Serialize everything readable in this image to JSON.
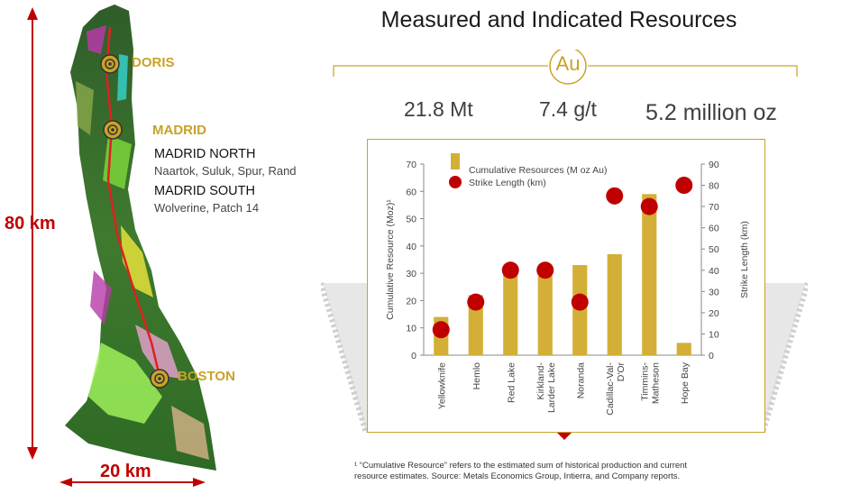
{
  "header": {
    "title": "Measured and Indicated Resources",
    "badge": "Au"
  },
  "stats": {
    "tonnage": "21.8 Mt",
    "grade": "7.4 g/t",
    "ounces": "5.2 million oz"
  },
  "map": {
    "labels": {
      "doris": "DORIS",
      "madrid": "MADRID",
      "boston": "BOSTON"
    },
    "madrid_north": {
      "title": "MADRID NORTH",
      "deposits": "Naartok, Suluk, Spur, Rand"
    },
    "madrid_south": {
      "title": "MADRID SOUTH",
      "deposits": "Wolverine, Patch 14"
    },
    "scale_vertical": "80 km",
    "scale_horizontal": "20 km"
  },
  "chart_data": {
    "type": "bar",
    "categories": [
      "Yellowknife",
      "Hemlo",
      "Red Lake",
      "Kirkland-Larder Lake",
      "Noranda",
      "Cadillac-Val-D'Or",
      "Timmins-Matheson",
      "Hope Bay"
    ],
    "category_lines": [
      [
        "Yellowknife"
      ],
      [
        "Hemlo"
      ],
      [
        "Red Lake"
      ],
      [
        "Kirkland-",
        "Larder Lake"
      ],
      [
        "Noranda"
      ],
      [
        "Cadillac-Val-",
        "D'Or"
      ],
      [
        "Timmins-",
        "Matheson"
      ],
      [
        "Hope Bay"
      ]
    ],
    "series": [
      {
        "name": "Cumulative Resources (M oz Au)",
        "type": "bar",
        "axis": "left",
        "color": "#d4af37",
        "values": [
          14,
          22,
          30,
          29,
          33,
          37,
          59,
          4.5
        ]
      },
      {
        "name": "Strike Length (km)",
        "type": "scatter",
        "axis": "right",
        "color": "#c00000",
        "values": [
          12,
          25,
          40,
          40,
          25,
          75,
          70,
          80
        ]
      }
    ],
    "ylabel": "Cumulative Resource  (Moz)¹",
    "ylabel_right": "Strike Length (km)",
    "ylim": [
      0,
      70
    ],
    "ylim_right": [
      0,
      90
    ],
    "yticks": [
      0,
      10,
      20,
      30,
      40,
      50,
      60,
      70
    ],
    "yticks_right": [
      0,
      10,
      20,
      30,
      40,
      50,
      60,
      70,
      80,
      90
    ],
    "legend_position": "top-left",
    "grid": false
  },
  "footnote": {
    "line1": "¹ “Cumulative Resource” refers to the estimated sum of historical production and current",
    "line2": "resource estimates. Source: Metals Economics Group, Intierra, and Company reports."
  },
  "colors": {
    "gold": "#c9a227",
    "red": "#c00000",
    "bar": "#d4af37"
  }
}
